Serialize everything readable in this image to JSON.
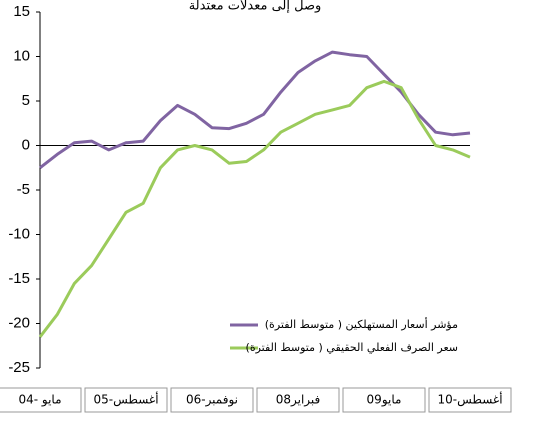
{
  "chart_data": {
    "type": "line",
    "title": "وصل إلى معدلات معتدلة",
    "categories": [
      "مايو -04",
      null,
      null,
      null,
      null,
      "أغسطس-05",
      null,
      null,
      null,
      null,
      "نوفمبر-06",
      null,
      null,
      null,
      null,
      "فبراير08",
      null,
      null,
      null,
      null,
      "مايو09",
      null,
      null,
      null,
      null,
      "أغسطس-10"
    ],
    "series": [
      {
        "name": "مؤشر أسعار المستهلكين ( متوسط الفترة)",
        "color": "#8064a2",
        "values": [
          -2.5,
          -1,
          0.3,
          0.5,
          -0.5,
          0.3,
          0.5,
          2.8,
          4.5,
          3.5,
          2,
          1.9,
          2.5,
          3.5,
          6,
          8.2,
          9.5,
          10.5,
          10.2,
          10,
          8,
          6,
          3.5,
          1.5,
          1.2,
          1.4
        ]
      },
      {
        "name": "سعر الصرف الفعلي الحقيقي ( متوسط الفترة)",
        "color": "#9bcb5b",
        "values": [
          -21.5,
          -19,
          -15.5,
          -13.5,
          -10.5,
          -7.5,
          -6.5,
          -2.5,
          -0.5,
          0,
          -0.5,
          -2,
          -1.8,
          -0.5,
          1.5,
          2.5,
          3.5,
          4,
          4.5,
          6.5,
          7.2,
          6.5,
          3,
          0,
          -0.5,
          -1.3
        ]
      }
    ],
    "ylim": [
      -25,
      15
    ],
    "yticks": [
      15,
      10,
      5,
      0,
      -5,
      -10,
      -15,
      -20,
      -25
    ]
  }
}
